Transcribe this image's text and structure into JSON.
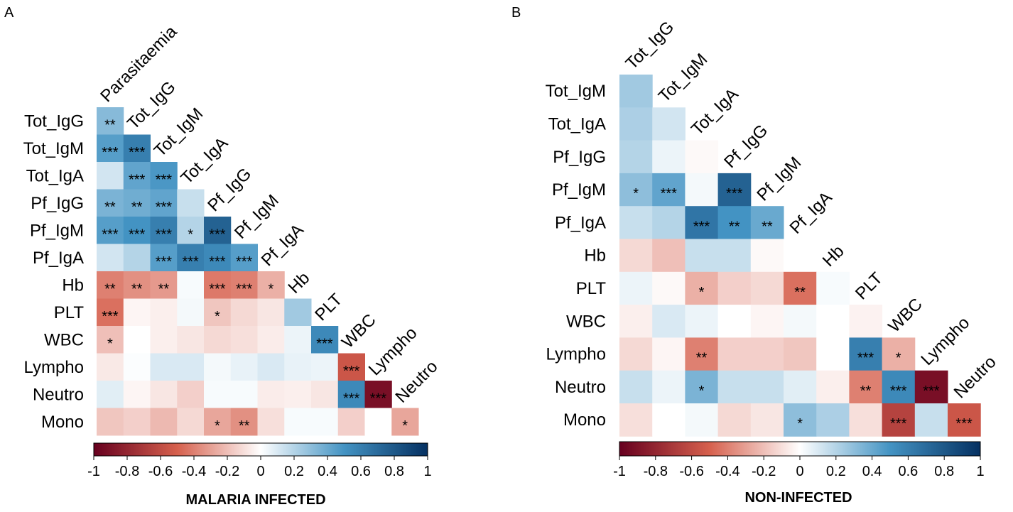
{
  "colors": {
    "negative_end": "#67001f",
    "negative_mid": "#d6604d",
    "neutral": "#ffffff",
    "positive_mid": "#4393c3",
    "positive_end": "#053061"
  },
  "chart_data": [
    {
      "type": "heatmap",
      "panel_letter": "A",
      "title": "MALARIA INFECTED",
      "variables": [
        "Parasitaemia",
        "Tot_IgG",
        "Tot_IgM",
        "Tot_IgA",
        "Pf_IgG",
        "Pf_IgM",
        "Pf_IgA",
        "Hb",
        "PLT",
        "WBC",
        "Lympho",
        "Neutro",
        "Mono"
      ],
      "column_labels": [
        "Parasitaemia",
        "Tot_IgG",
        "Tot_IgM",
        "Tot_IgA",
        "Pf_IgG",
        "Pf_IgM",
        "Pf_IgA",
        "Hb",
        "PLT",
        "WBC",
        "Lympho",
        "Neutro"
      ],
      "row_labels": [
        "Tot_IgG",
        "Tot_IgM",
        "Tot_IgA",
        "Pf_IgG",
        "Pf_IgM",
        "Pf_IgA",
        "Hb",
        "PLT",
        "WBC",
        "Lympho",
        "Neutro",
        "Mono"
      ],
      "colorbar": {
        "range": [
          -1,
          1
        ],
        "ticks": [
          "-1",
          "-0.8",
          "-0.6",
          "-0.4",
          "-0.2",
          "0",
          "0.2",
          "0.4",
          "0.6",
          "0.8",
          "1"
        ]
      },
      "rows": [
        {
          "label": "Tot_IgG",
          "values": [
            0.32
          ],
          "stars": [
            "**"
          ]
        },
        {
          "label": "Tot_IgM",
          "values": [
            0.45,
            0.6
          ],
          "stars": [
            "***",
            "***"
          ]
        },
        {
          "label": "Tot_IgA",
          "values": [
            0.12,
            0.42,
            0.48
          ],
          "stars": [
            "",
            "***",
            "***"
          ]
        },
        {
          "label": "Pf_IgG",
          "values": [
            0.35,
            0.38,
            0.42,
            0.15
          ],
          "stars": [
            "**",
            "**",
            "***",
            ""
          ]
        },
        {
          "label": "Pf_IgM",
          "values": [
            0.45,
            0.5,
            0.6,
            0.2,
            0.75
          ],
          "stars": [
            "***",
            "***",
            "***",
            "*",
            "***"
          ]
        },
        {
          "label": "Pf_IgA",
          "values": [
            0.12,
            0.2,
            0.45,
            0.6,
            0.55,
            0.45
          ],
          "stars": [
            "",
            "",
            "***",
            "***",
            "***",
            "***"
          ]
        },
        {
          "label": "Hb",
          "values": [
            -0.4,
            -0.35,
            -0.32,
            0.02,
            -0.42,
            -0.4,
            -0.25
          ],
          "stars": [
            "**",
            "**",
            "**",
            "",
            "***",
            "***",
            "*"
          ]
        },
        {
          "label": "PLT",
          "values": [
            -0.45,
            -0.03,
            -0.05,
            0.03,
            -0.18,
            -0.12,
            -0.08,
            0.25
          ],
          "stars": [
            "***",
            "",
            "",
            "",
            "*",
            "",
            "",
            ""
          ]
        },
        {
          "label": "WBC",
          "values": [
            -0.2,
            0.0,
            -0.05,
            -0.08,
            -0.12,
            -0.1,
            -0.06,
            0.05,
            0.55
          ],
          "stars": [
            "*",
            "",
            "",
            "",
            "",
            "",
            "",
            "",
            "***"
          ]
        },
        {
          "label": "Lympho",
          "values": [
            -0.07,
            0.01,
            0.1,
            0.1,
            0.03,
            0.06,
            0.1,
            0.06,
            0.05,
            -0.55
          ],
          "stars": [
            "",
            "",
            "",
            "",
            "",
            "",
            "",
            "",
            "",
            "***"
          ]
        },
        {
          "label": "Neutro",
          "values": [
            0.08,
            -0.03,
            -0.08,
            -0.15,
            0.02,
            0.02,
            -0.06,
            -0.05,
            -0.08,
            0.55,
            -0.92
          ],
          "stars": [
            "",
            "",
            "",
            "",
            "",
            "",
            "",
            "",
            "",
            "***",
            "***"
          ]
        },
        {
          "label": "Mono",
          "values": [
            -0.18,
            -0.15,
            -0.22,
            -0.12,
            -0.28,
            -0.35,
            -0.1,
            0.02,
            0.02,
            -0.15,
            0.0,
            -0.28
          ],
          "stars": [
            "",
            "",
            "",
            "",
            "*",
            "**",
            "",
            "",
            "",
            "",
            "",
            "*"
          ]
        }
      ]
    },
    {
      "type": "heatmap",
      "panel_letter": "B",
      "title": "NON-INFECTED",
      "variables": [
        "Tot_IgG",
        "Tot_IgM",
        "Tot_IgA",
        "Pf_IgG",
        "Pf_IgM",
        "Pf_IgA",
        "Hb",
        "PLT",
        "WBC",
        "Lympho",
        "Neutro",
        "Mono"
      ],
      "column_labels": [
        "Tot_IgG",
        "Tot_IgM",
        "Tot_IgA",
        "Pf_IgG",
        "Pf_IgM",
        "Pf_IgA",
        "Hb",
        "PLT",
        "WBC",
        "Lympho",
        "Neutro"
      ],
      "row_labels": [
        "Tot_IgM",
        "Tot_IgA",
        "Pf_IgG",
        "Pf_IgM",
        "Pf_IgA",
        "Hb",
        "PLT",
        "WBC",
        "Lympho",
        "Neutro",
        "Mono"
      ],
      "colorbar": {
        "range": [
          -1,
          1
        ],
        "ticks": [
          "-1",
          "-0.8",
          "-0.6",
          "-0.4",
          "-0.2",
          "0",
          "0.2",
          "0.4",
          "0.6",
          "0.8",
          "1"
        ]
      },
      "rows": [
        {
          "label": "Tot_IgM",
          "values": [
            0.25
          ],
          "stars": [
            ""
          ]
        },
        {
          "label": "Tot_IgA",
          "values": [
            0.22,
            0.12
          ],
          "stars": [
            "",
            ""
          ]
        },
        {
          "label": "Pf_IgG",
          "values": [
            0.2,
            0.05,
            -0.02
          ],
          "stars": [
            "",
            "",
            ""
          ]
        },
        {
          "label": "Pf_IgM",
          "values": [
            0.3,
            0.42,
            0.03,
            0.75
          ],
          "stars": [
            "*",
            "***",
            "",
            "***"
          ]
        },
        {
          "label": "Pf_IgA",
          "values": [
            0.15,
            0.2,
            0.65,
            0.5,
            0.4
          ],
          "stars": [
            "",
            "",
            "***",
            "**",
            "**"
          ]
        },
        {
          "label": "Hb",
          "values": [
            -0.12,
            -0.2,
            0.15,
            0.15,
            -0.02,
            0.0
          ],
          "stars": [
            "",
            "",
            "",
            "",
            "",
            ""
          ]
        },
        {
          "label": "PLT",
          "values": [
            0.05,
            -0.02,
            -0.25,
            -0.15,
            -0.12,
            -0.45,
            0.02
          ],
          "stars": [
            "",
            "",
            "*",
            "",
            "",
            "**",
            ""
          ]
        },
        {
          "label": "WBC",
          "values": [
            -0.05,
            0.1,
            0.05,
            0.0,
            -0.03,
            0.03,
            0.0,
            -0.04
          ],
          "stars": [
            "",
            "",
            "",
            "",
            "",
            "",
            "",
            ""
          ]
        },
        {
          "label": "Lympho",
          "values": [
            -0.12,
            -0.03,
            -0.4,
            -0.15,
            -0.15,
            -0.18,
            0.0,
            0.6,
            -0.25
          ],
          "stars": [
            "",
            "",
            "**",
            "",
            "",
            "",
            "",
            "***",
            "*"
          ]
        },
        {
          "label": "Neutro",
          "values": [
            0.15,
            0.05,
            0.35,
            0.15,
            0.15,
            0.08,
            -0.05,
            -0.4,
            0.55,
            -0.92
          ],
          "stars": [
            "",
            "",
            "*",
            "",
            "",
            "",
            "",
            "**",
            "***",
            "***"
          ]
        },
        {
          "label": "Mono",
          "values": [
            -0.1,
            0.0,
            0.03,
            -0.12,
            -0.08,
            0.3,
            0.22,
            -0.1,
            -0.65,
            0.15,
            -0.55
          ],
          "stars": [
            "",
            "",
            "",
            "",
            "",
            "*",
            "",
            "",
            "***",
            "",
            "***"
          ]
        }
      ]
    }
  ]
}
